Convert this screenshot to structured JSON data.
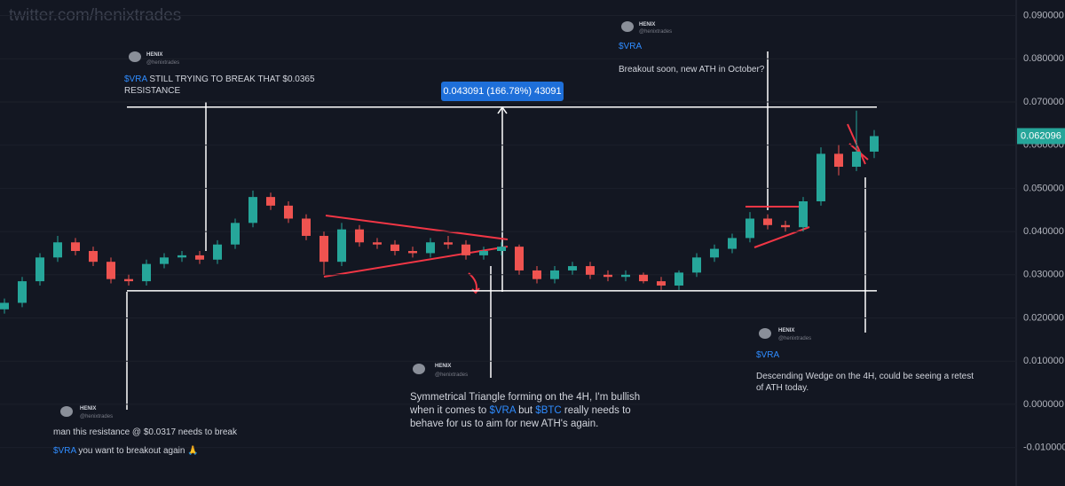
{
  "chart_data": {
    "type": "candlestick",
    "watermark": "twitter.com/henixtrades",
    "up_color": "#26a69a",
    "down_color": "#ef5350",
    "grid": true,
    "ylim": [
      -0.0189,
      0.0936
    ],
    "yticks": [
      {
        "value": 0.09,
        "label": "0.090000"
      },
      {
        "value": 0.08,
        "label": "0.080000"
      },
      {
        "value": 0.07,
        "label": "0.070000"
      },
      {
        "value": 0.06,
        "label": "0.060000"
      },
      {
        "value": 0.05,
        "label": "0.050000"
      },
      {
        "value": 0.04,
        "label": "0.040000"
      },
      {
        "value": 0.03,
        "label": "0.030000"
      },
      {
        "value": 0.02,
        "label": "0.020000"
      },
      {
        "value": 0.01,
        "label": "0.010000"
      },
      {
        "value": 0,
        "label": "0.000000"
      },
      {
        "value": -0.01,
        "label": "-0.010000"
      }
    ],
    "open": [
      0.022,
      0.0235,
      0.0285,
      0.034,
      0.0375,
      0.0355,
      0.033,
      0.029,
      0.0285,
      0.0325,
      0.034,
      0.0345,
      0.0335,
      0.037,
      0.042,
      0.048,
      0.046,
      0.043,
      0.039,
      0.033,
      0.0405,
      0.0375,
      0.037,
      0.0355,
      0.035,
      0.0375,
      0.037,
      0.0345,
      0.0355,
      0.0365,
      0.031,
      0.029,
      0.031,
      0.032,
      0.03,
      0.0295,
      0.03,
      0.0285,
      0.0275,
      0.0305,
      0.034,
      0.036,
      0.0385,
      0.043,
      0.0415,
      0.041,
      0.047,
      0.058,
      0.055,
      0.0585
    ],
    "high": [
      0.0245,
      0.0295,
      0.035,
      0.039,
      0.0385,
      0.0365,
      0.034,
      0.03,
      0.0335,
      0.035,
      0.0355,
      0.0355,
      0.038,
      0.043,
      0.0495,
      0.049,
      0.047,
      0.044,
      0.04,
      0.042,
      0.0415,
      0.0385,
      0.038,
      0.0365,
      0.0385,
      0.039,
      0.038,
      0.0365,
      0.0375,
      0.037,
      0.032,
      0.032,
      0.033,
      0.033,
      0.031,
      0.031,
      0.0305,
      0.0295,
      0.031,
      0.035,
      0.037,
      0.0395,
      0.0445,
      0.044,
      0.0425,
      0.048,
      0.0595,
      0.06,
      0.068,
      0.0635
    ],
    "low": [
      0.021,
      0.0225,
      0.0275,
      0.033,
      0.0345,
      0.032,
      0.028,
      0.0275,
      0.0275,
      0.0315,
      0.033,
      0.0325,
      0.0325,
      0.036,
      0.041,
      0.045,
      0.042,
      0.038,
      0.03,
      0.032,
      0.0365,
      0.036,
      0.0345,
      0.034,
      0.034,
      0.036,
      0.0335,
      0.0335,
      0.0345,
      0.03,
      0.028,
      0.028,
      0.03,
      0.029,
      0.0285,
      0.0285,
      0.028,
      0.0265,
      0.0265,
      0.0295,
      0.033,
      0.035,
      0.0375,
      0.0405,
      0.04,
      0.04,
      0.046,
      0.053,
      0.054,
      0.057
    ],
    "close": [
      0.0235,
      0.0285,
      0.034,
      0.0375,
      0.0355,
      0.033,
      0.029,
      0.0285,
      0.0325,
      0.034,
      0.0345,
      0.0335,
      0.037,
      0.042,
      0.048,
      0.046,
      0.043,
      0.039,
      0.033,
      0.0405,
      0.0375,
      0.037,
      0.0355,
      0.035,
      0.0375,
      0.037,
      0.0345,
      0.0355,
      0.0365,
      0.031,
      0.029,
      0.031,
      0.032,
      0.03,
      0.0295,
      0.03,
      0.0285,
      0.0275,
      0.0305,
      0.034,
      0.036,
      0.0385,
      0.043,
      0.0415,
      0.041,
      0.047,
      0.058,
      0.055,
      0.0585,
      0.062096
    ],
    "last_price": 0.062096,
    "levels": [
      0.0688,
      0.0263
    ],
    "measure_label": "0.043091 (166.78%) 43091"
  },
  "tweets": [
    {
      "name": "HENIX",
      "handle": "@henixtrades",
      "text": [
        "$VRA",
        " STILL TRYING TO BREAK THAT $0.0365 RESISTANCE"
      ]
    },
    {
      "name": "HENIX",
      "handle": "@henixtrades",
      "text": [
        "$VRA",
        "Breakout soon, new ATH in October?"
      ]
    },
    {
      "name": "HENIX",
      "handle": "@henixtrades",
      "text": [
        "Symmetrical Triangle forming on the 4H, I'm bullish when it comes to ",
        "$VRA",
        " but ",
        "$BTC",
        " really needs to behave for us to aim for new ATH's again."
      ]
    },
    {
      "name": "HENIX",
      "handle": "@henixtrades",
      "text": [
        "$VRA",
        "Descending Wedge on the 4H, could be seeing a retest of ATH today."
      ]
    },
    {
      "name": "HENIX",
      "handle": "@henixtrades",
      "text": [
        "man this resistance @ $0.0317 needs to break",
        "$VRA",
        " you want to breakout again 🙏"
      ]
    }
  ]
}
